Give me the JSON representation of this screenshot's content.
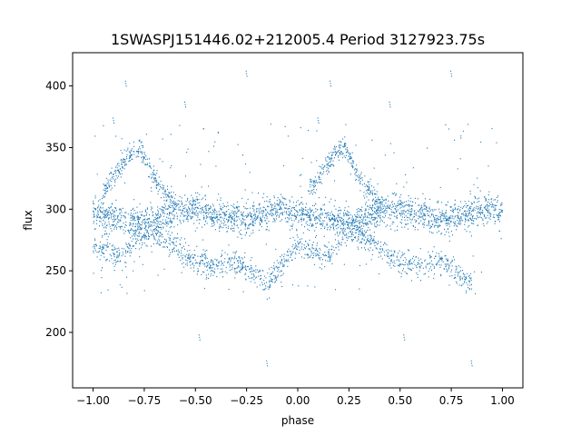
{
  "chart_data": {
    "type": "scatter",
    "title": "1SWASPJ151446.02+212005.4 Period 3127923.75s",
    "xlabel": "phase",
    "ylabel": "flux",
    "xlim": [
      -1.1,
      1.1
    ],
    "ylim": [
      155,
      427
    ],
    "x_ticks": [
      -1.0,
      -0.75,
      -0.5,
      -0.25,
      0.0,
      0.25,
      0.5,
      0.75,
      1.0
    ],
    "x_tick_labels": [
      "−1.00",
      "−0.75",
      "−0.50",
      "−0.25",
      "0.00",
      "0.25",
      "0.50",
      "0.75",
      "1.00"
    ],
    "y_ticks": [
      200,
      250,
      300,
      350,
      400
    ],
    "y_tick_labels": [
      "200",
      "250",
      "300",
      "350",
      "400"
    ],
    "grid": false,
    "legend": false,
    "marker_color": "#1f77b4",
    "series": [
      {
        "baseline": [
          [
            -1.0,
            297
          ],
          [
            -0.95,
            295
          ],
          [
            -0.9,
            293
          ],
          [
            -0.85,
            292
          ],
          [
            -0.8,
            291
          ],
          [
            -0.75,
            290
          ],
          [
            -0.7,
            291
          ],
          [
            -0.65,
            294
          ],
          [
            -0.6,
            298
          ],
          [
            -0.55,
            300
          ],
          [
            -0.5,
            301
          ],
          [
            -0.45,
            298
          ],
          [
            -0.4,
            295
          ],
          [
            -0.35,
            293
          ],
          [
            -0.3,
            292
          ],
          [
            -0.25,
            292
          ],
          [
            -0.2,
            294
          ],
          [
            -0.15,
            297
          ],
          [
            -0.1,
            300
          ],
          [
            -0.05,
            300
          ],
          [
            0.0,
            297
          ],
          [
            0.05,
            295
          ],
          [
            0.1,
            293
          ],
          [
            0.15,
            292
          ],
          [
            0.2,
            291
          ],
          [
            0.25,
            290
          ],
          [
            0.3,
            291
          ],
          [
            0.35,
            294
          ],
          [
            0.4,
            298
          ],
          [
            0.45,
            300
          ],
          [
            0.5,
            301
          ],
          [
            0.55,
            298
          ],
          [
            0.6,
            295
          ],
          [
            0.65,
            293
          ],
          [
            0.7,
            292
          ],
          [
            0.75,
            292
          ],
          [
            0.8,
            294
          ],
          [
            0.85,
            297
          ],
          [
            0.9,
            300
          ],
          [
            0.95,
            300
          ],
          [
            1.0,
            297
          ]
        ],
        "upper_branch": [
          [
            -0.95,
            315
          ],
          [
            -0.9,
            325
          ],
          [
            -0.85,
            338
          ],
          [
            -0.8,
            348
          ],
          [
            -0.77,
            350
          ],
          [
            -0.73,
            335
          ],
          [
            -0.67,
            318
          ],
          [
            -0.6,
            305
          ],
          [
            0.05,
            315
          ],
          [
            0.1,
            325
          ],
          [
            0.15,
            338
          ],
          [
            0.2,
            348
          ],
          [
            0.23,
            350
          ],
          [
            0.27,
            335
          ],
          [
            0.33,
            318
          ],
          [
            0.4,
            305
          ]
        ],
        "lower_branch": [
          [
            -1.0,
            272
          ],
          [
            -0.95,
            268
          ],
          [
            -0.9,
            264
          ],
          [
            -0.85,
            262
          ],
          [
            -0.8,
            275
          ],
          [
            -0.7,
            280
          ],
          [
            -0.6,
            270
          ],
          [
            -0.55,
            262
          ],
          [
            -0.5,
            258
          ],
          [
            -0.45,
            255
          ],
          [
            -0.4,
            253
          ],
          [
            -0.35,
            258
          ],
          [
            -0.3,
            256
          ],
          [
            -0.25,
            252
          ],
          [
            -0.2,
            245
          ],
          [
            -0.15,
            240
          ],
          [
            0.0,
            272
          ],
          [
            0.05,
            268
          ],
          [
            0.1,
            264
          ],
          [
            0.15,
            262
          ],
          [
            0.2,
            275
          ],
          [
            0.3,
            280
          ],
          [
            0.4,
            270
          ],
          [
            0.45,
            262
          ],
          [
            0.5,
            258
          ],
          [
            0.55,
            255
          ],
          [
            0.6,
            253
          ],
          [
            0.65,
            258
          ],
          [
            0.7,
            256
          ],
          [
            0.75,
            252
          ],
          [
            0.8,
            245
          ],
          [
            0.85,
            240
          ]
        ],
        "outliers": [
          [
            -0.48,
            196
          ],
          [
            0.52,
            196
          ],
          [
            -0.84,
            402
          ],
          [
            0.16,
            402
          ],
          [
            -0.25,
            410
          ],
          [
            0.75,
            410
          ],
          [
            -0.15,
            175
          ],
          [
            0.85,
            175
          ],
          [
            -0.55,
            385
          ],
          [
            0.45,
            385
          ],
          [
            -0.9,
            372
          ],
          [
            0.1,
            372
          ]
        ],
        "approx_point_count": 3800
      }
    ]
  }
}
